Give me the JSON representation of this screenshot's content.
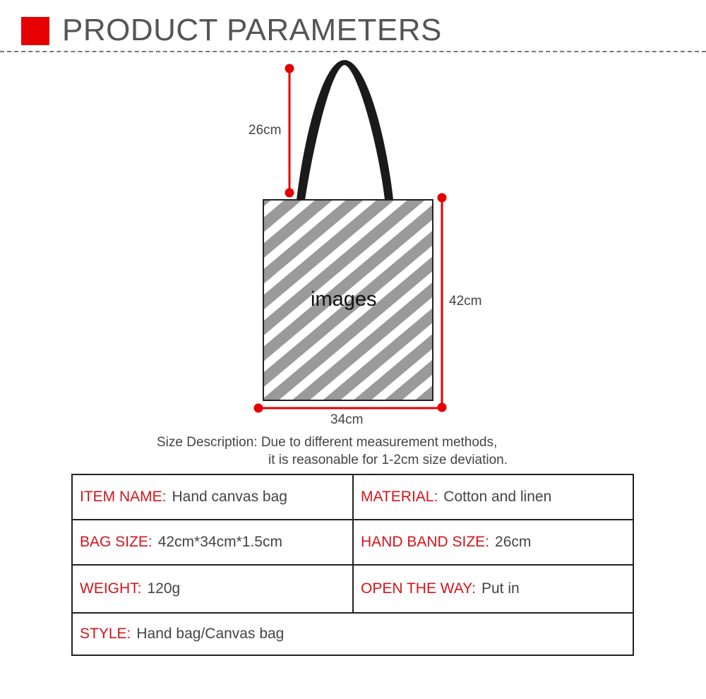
{
  "header": {
    "title": "PRODUCT PARAMETERS",
    "accent": "#e60000"
  },
  "figure": {
    "bag_label": "images",
    "handle_height": "26cm",
    "bag_height": "42cm",
    "bag_width": "34cm"
  },
  "description": {
    "line1": "Size Description: Due to different measurement methods,",
    "line2": "it is reasonable for 1-2cm size deviation."
  },
  "specs": [
    {
      "label": "ITEM NAME:",
      "value": "Hand canvas bag"
    },
    {
      "label": "MATERIAL:",
      "value": "Cotton and linen"
    },
    {
      "label": "BAG SIZE:",
      "value": "42cm*34cm*1.5cm"
    },
    {
      "label": "HAND BAND SIZE:",
      "value": "26cm"
    },
    {
      "label": "WEIGHT:",
      "value": "120g"
    },
    {
      "label": "OPEN THE WAY:",
      "value": "Put in"
    },
    {
      "label": "STYLE:",
      "value": "Hand bag/Canvas bag"
    }
  ]
}
